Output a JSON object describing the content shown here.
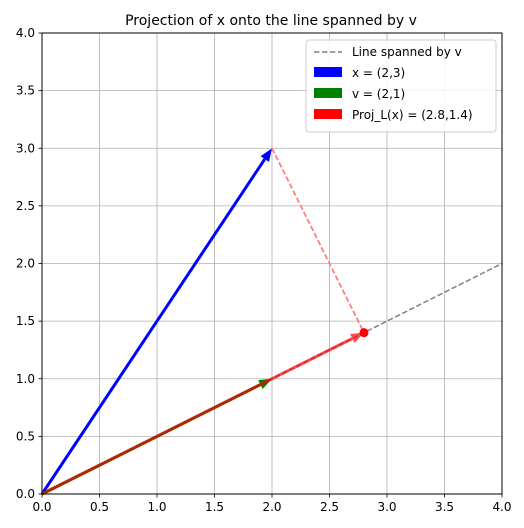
{
  "chart_data": {
    "type": "vector",
    "title": "Projection of x onto the line spanned by v",
    "xlabel": "",
    "ylabel": "",
    "xlim": [
      0,
      4
    ],
    "ylim": [
      0,
      4
    ],
    "xticks": [
      "0.0",
      "0.5",
      "1.0",
      "1.5",
      "2.0",
      "2.5",
      "3.0",
      "3.5",
      "4.0"
    ],
    "yticks": [
      "0.0",
      "0.5",
      "1.0",
      "1.5",
      "2.0",
      "2.5",
      "3.0",
      "3.5",
      "4.0"
    ],
    "grid": true,
    "legend_position": "top-right",
    "line": {
      "name": "Line spanned by v",
      "x": [
        0,
        4
      ],
      "y": [
        0,
        2
      ],
      "color": "#808080",
      "style": "dashed"
    },
    "vectors": [
      {
        "name": "x = (2,3)",
        "from": [
          0,
          0
        ],
        "to": [
          2,
          3
        ],
        "color": "#0000ff"
      },
      {
        "name": "v = (2,1)",
        "from": [
          0,
          0
        ],
        "to": [
          2,
          1
        ],
        "color": "#008000"
      },
      {
        "name": "Proj_L(x) = (2.8,1.4)",
        "from": [
          0,
          0
        ],
        "to": [
          2.8,
          1.4
        ],
        "color": "#ff0000"
      }
    ],
    "connector": {
      "from": [
        2,
        3
      ],
      "to": [
        2.8,
        1.4
      ],
      "color": "#ff8080",
      "style": "dashed"
    },
    "point": {
      "x": 2.8,
      "y": 1.4,
      "color": "#ff0000"
    }
  }
}
